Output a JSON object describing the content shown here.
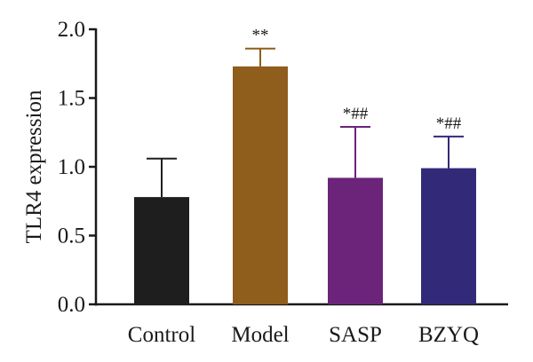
{
  "chart_data": {
    "type": "bar",
    "title": "",
    "xlabel": "",
    "ylabel": "TLR4 expression",
    "ylim": [
      0,
      2.0
    ],
    "yticks": [
      "0.0",
      "0.5",
      "1.0",
      "1.5",
      "2.0"
    ],
    "grid": false,
    "categories": [
      "Control",
      "Model",
      "SASP",
      "BZYQ"
    ],
    "values": [
      0.78,
      1.73,
      0.92,
      0.99
    ],
    "errors": [
      0.28,
      0.13,
      0.37,
      0.23
    ],
    "annotations": [
      "",
      "**",
      "*##",
      "*##"
    ],
    "colors": [
      "#1e1e1e",
      "#8f5d1c",
      "#6b2479",
      "#322a78"
    ]
  }
}
